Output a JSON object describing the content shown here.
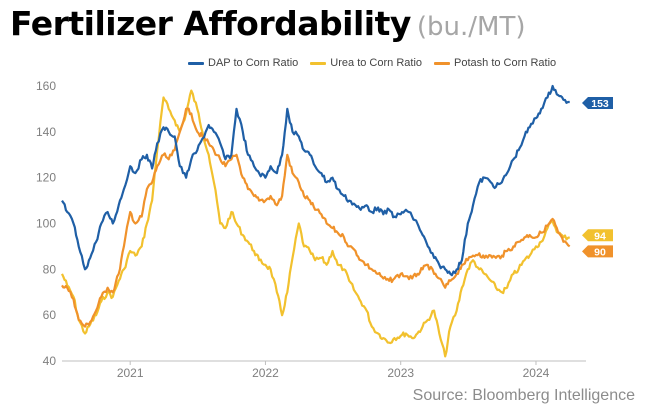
{
  "title": "Fertilizer Affordability",
  "title_unit": "(bu./MT)",
  "source": "Source: Bloomberg Intelligence",
  "chart_data": {
    "type": "line",
    "title": "Fertilizer Affordability",
    "subtitle": "(bu./MT)",
    "xlabel": "",
    "ylabel": "",
    "xlim": [
      "2020-07-01",
      "2024-05-15"
    ],
    "ylim": [
      40,
      160
    ],
    "yticks": [
      40,
      60,
      80,
      100,
      120,
      140,
      160
    ],
    "xticks": [
      {
        "label": "2021",
        "date": "2021-01-01"
      },
      {
        "label": "2022",
        "date": "2022-01-01"
      },
      {
        "label": "2023",
        "date": "2023-01-01"
      },
      {
        "label": "2024",
        "date": "2024-01-01"
      }
    ],
    "grid": false,
    "legend": "top-right",
    "series": [
      {
        "name": "DAP to Corn Ratio",
        "color": "#1f5fa6",
        "end_label": "153",
        "points": [
          [
            "2020-07-01",
            110
          ],
          [
            "2020-07-15",
            105
          ],
          [
            "2020-08-01",
            100
          ],
          [
            "2020-08-15",
            90
          ],
          [
            "2020-09-01",
            80
          ],
          [
            "2020-09-15",
            85
          ],
          [
            "2020-10-01",
            92
          ],
          [
            "2020-10-15",
            100
          ],
          [
            "2020-11-01",
            105
          ],
          [
            "2020-11-15",
            100
          ],
          [
            "2020-12-01",
            108
          ],
          [
            "2020-12-15",
            115
          ],
          [
            "2021-01-01",
            125
          ],
          [
            "2021-01-15",
            122
          ],
          [
            "2021-02-01",
            128
          ],
          [
            "2021-02-15",
            130
          ],
          [
            "2021-03-01",
            124
          ],
          [
            "2021-03-15",
            135
          ],
          [
            "2021-04-01",
            142
          ],
          [
            "2021-04-15",
            140
          ],
          [
            "2021-05-01",
            138
          ],
          [
            "2021-05-15",
            125
          ],
          [
            "2021-06-01",
            120
          ],
          [
            "2021-06-15",
            128
          ],
          [
            "2021-07-01",
            132
          ],
          [
            "2021-07-15",
            137
          ],
          [
            "2021-08-01",
            143
          ],
          [
            "2021-08-15",
            140
          ],
          [
            "2021-09-01",
            135
          ],
          [
            "2021-09-15",
            128
          ],
          [
            "2021-10-01",
            130
          ],
          [
            "2021-10-15",
            150
          ],
          [
            "2021-11-01",
            140
          ],
          [
            "2021-11-15",
            130
          ],
          [
            "2021-12-01",
            125
          ],
          [
            "2021-12-15",
            122
          ],
          [
            "2022-01-01",
            120
          ],
          [
            "2022-01-15",
            125
          ],
          [
            "2022-02-01",
            122
          ],
          [
            "2022-02-15",
            130
          ],
          [
            "2022-03-01",
            150
          ],
          [
            "2022-03-15",
            140
          ],
          [
            "2022-04-01",
            138
          ],
          [
            "2022-04-15",
            132
          ],
          [
            "2022-05-01",
            130
          ],
          [
            "2022-05-15",
            125
          ],
          [
            "2022-06-01",
            122
          ],
          [
            "2022-06-15",
            118
          ],
          [
            "2022-07-01",
            120
          ],
          [
            "2022-07-15",
            115
          ],
          [
            "2022-08-01",
            112
          ],
          [
            "2022-08-15",
            110
          ],
          [
            "2022-09-01",
            108
          ],
          [
            "2022-09-15",
            106
          ],
          [
            "2022-10-01",
            108
          ],
          [
            "2022-10-15",
            105
          ],
          [
            "2022-11-01",
            107
          ],
          [
            "2022-11-15",
            104
          ],
          [
            "2022-12-01",
            106
          ],
          [
            "2022-12-15",
            103
          ],
          [
            "2023-01-01",
            104
          ],
          [
            "2023-01-15",
            106
          ],
          [
            "2023-02-01",
            103
          ],
          [
            "2023-02-15",
            100
          ],
          [
            "2023-03-01",
            95
          ],
          [
            "2023-03-15",
            90
          ],
          [
            "2023-04-01",
            85
          ],
          [
            "2023-04-15",
            82
          ],
          [
            "2023-05-01",
            80
          ],
          [
            "2023-05-15",
            78
          ],
          [
            "2023-06-01",
            80
          ],
          [
            "2023-06-15",
            84
          ],
          [
            "2023-07-01",
            100
          ],
          [
            "2023-07-15",
            108
          ],
          [
            "2023-08-01",
            118
          ],
          [
            "2023-08-15",
            120
          ],
          [
            "2023-09-01",
            118
          ],
          [
            "2023-09-15",
            116
          ],
          [
            "2023-10-01",
            118
          ],
          [
            "2023-10-15",
            122
          ],
          [
            "2023-11-01",
            128
          ],
          [
            "2023-11-15",
            132
          ],
          [
            "2023-12-01",
            138
          ],
          [
            "2023-12-15",
            142
          ],
          [
            "2024-01-01",
            146
          ],
          [
            "2024-01-15",
            150
          ],
          [
            "2024-02-01",
            155
          ],
          [
            "2024-02-15",
            160
          ],
          [
            "2024-03-01",
            156
          ],
          [
            "2024-03-15",
            154
          ],
          [
            "2024-04-01",
            153
          ]
        ]
      },
      {
        "name": "Urea to Corn Ratio",
        "color": "#f2c12e",
        "end_label": "94",
        "points": [
          [
            "2020-07-01",
            78
          ],
          [
            "2020-07-15",
            73
          ],
          [
            "2020-08-01",
            68
          ],
          [
            "2020-08-15",
            58
          ],
          [
            "2020-09-01",
            52
          ],
          [
            "2020-09-15",
            56
          ],
          [
            "2020-10-01",
            60
          ],
          [
            "2020-10-15",
            66
          ],
          [
            "2020-11-01",
            70
          ],
          [
            "2020-11-15",
            68
          ],
          [
            "2020-12-01",
            75
          ],
          [
            "2020-12-15",
            80
          ],
          [
            "2021-01-01",
            88
          ],
          [
            "2021-01-15",
            86
          ],
          [
            "2021-02-01",
            90
          ],
          [
            "2021-02-15",
            100
          ],
          [
            "2021-03-01",
            110
          ],
          [
            "2021-03-15",
            132
          ],
          [
            "2021-04-01",
            155
          ],
          [
            "2021-04-15",
            150
          ],
          [
            "2021-05-01",
            145
          ],
          [
            "2021-05-15",
            140
          ],
          [
            "2021-06-01",
            148
          ],
          [
            "2021-06-15",
            158
          ],
          [
            "2021-07-01",
            150
          ],
          [
            "2021-07-15",
            140
          ],
          [
            "2021-08-01",
            130
          ],
          [
            "2021-08-15",
            118
          ],
          [
            "2021-09-01",
            100
          ],
          [
            "2021-09-15",
            98
          ],
          [
            "2021-10-01",
            105
          ],
          [
            "2021-10-15",
            100
          ],
          [
            "2021-11-01",
            95
          ],
          [
            "2021-11-15",
            92
          ],
          [
            "2021-12-01",
            88
          ],
          [
            "2021-12-15",
            84
          ],
          [
            "2022-01-01",
            82
          ],
          [
            "2022-01-15",
            80
          ],
          [
            "2022-02-01",
            70
          ],
          [
            "2022-02-15",
            60
          ],
          [
            "2022-03-01",
            70
          ],
          [
            "2022-03-15",
            85
          ],
          [
            "2022-04-01",
            100
          ],
          [
            "2022-04-15",
            90
          ],
          [
            "2022-05-01",
            88
          ],
          [
            "2022-05-15",
            84
          ],
          [
            "2022-06-01",
            85
          ],
          [
            "2022-06-15",
            82
          ],
          [
            "2022-07-01",
            88
          ],
          [
            "2022-07-15",
            82
          ],
          [
            "2022-08-01",
            80
          ],
          [
            "2022-08-15",
            75
          ],
          [
            "2022-09-01",
            70
          ],
          [
            "2022-09-15",
            66
          ],
          [
            "2022-10-01",
            62
          ],
          [
            "2022-10-15",
            55
          ],
          [
            "2022-11-01",
            52
          ],
          [
            "2022-11-15",
            50
          ],
          [
            "2022-12-01",
            48
          ],
          [
            "2022-12-15",
            50
          ],
          [
            "2023-01-01",
            51
          ],
          [
            "2023-01-15",
            52
          ],
          [
            "2023-02-01",
            50
          ],
          [
            "2023-02-15",
            52
          ],
          [
            "2023-03-01",
            55
          ],
          [
            "2023-03-15",
            58
          ],
          [
            "2023-04-01",
            62
          ],
          [
            "2023-04-15",
            52
          ],
          [
            "2023-05-01",
            42
          ],
          [
            "2023-05-15",
            55
          ],
          [
            "2023-06-01",
            62
          ],
          [
            "2023-06-15",
            72
          ],
          [
            "2023-07-01",
            80
          ],
          [
            "2023-07-15",
            84
          ],
          [
            "2023-08-01",
            80
          ],
          [
            "2023-08-15",
            78
          ],
          [
            "2023-09-01",
            75
          ],
          [
            "2023-09-15",
            72
          ],
          [
            "2023-10-01",
            70
          ],
          [
            "2023-10-15",
            72
          ],
          [
            "2023-11-01",
            78
          ],
          [
            "2023-11-15",
            80
          ],
          [
            "2023-12-01",
            84
          ],
          [
            "2023-12-15",
            86
          ],
          [
            "2024-01-01",
            90
          ],
          [
            "2024-01-15",
            92
          ],
          [
            "2024-02-01",
            98
          ],
          [
            "2024-02-15",
            101
          ],
          [
            "2024-03-01",
            96
          ],
          [
            "2024-03-15",
            94
          ],
          [
            "2024-04-01",
            94
          ]
        ]
      },
      {
        "name": "Potash to Corn Ratio",
        "color": "#f0922b",
        "end_label": "90",
        "points": [
          [
            "2020-07-01",
            73
          ],
          [
            "2020-07-15",
            72
          ],
          [
            "2020-08-01",
            67
          ],
          [
            "2020-08-15",
            58
          ],
          [
            "2020-09-01",
            55
          ],
          [
            "2020-09-15",
            57
          ],
          [
            "2020-10-01",
            62
          ],
          [
            "2020-10-15",
            68
          ],
          [
            "2020-11-01",
            72
          ],
          [
            "2020-11-15",
            70
          ],
          [
            "2020-12-01",
            78
          ],
          [
            "2020-12-15",
            90
          ],
          [
            "2021-01-01",
            105
          ],
          [
            "2021-01-15",
            100
          ],
          [
            "2021-02-01",
            103
          ],
          [
            "2021-02-15",
            115
          ],
          [
            "2021-03-01",
            118
          ],
          [
            "2021-03-15",
            125
          ],
          [
            "2021-04-01",
            130
          ],
          [
            "2021-04-15",
            128
          ],
          [
            "2021-05-01",
            132
          ],
          [
            "2021-05-15",
            140
          ],
          [
            "2021-06-01",
            150
          ],
          [
            "2021-06-15",
            148
          ],
          [
            "2021-07-01",
            140
          ],
          [
            "2021-07-15",
            138
          ],
          [
            "2021-08-01",
            135
          ],
          [
            "2021-08-15",
            132
          ],
          [
            "2021-09-01",
            128
          ],
          [
            "2021-09-15",
            125
          ],
          [
            "2021-10-01",
            128
          ],
          [
            "2021-10-15",
            130
          ],
          [
            "2021-11-01",
            120
          ],
          [
            "2021-11-15",
            115
          ],
          [
            "2021-12-01",
            112
          ],
          [
            "2021-12-15",
            110
          ],
          [
            "2022-01-01",
            110
          ],
          [
            "2022-01-15",
            112
          ],
          [
            "2022-02-01",
            108
          ],
          [
            "2022-02-15",
            112
          ],
          [
            "2022-03-01",
            130
          ],
          [
            "2022-03-15",
            122
          ],
          [
            "2022-04-01",
            118
          ],
          [
            "2022-04-15",
            112
          ],
          [
            "2022-05-01",
            110
          ],
          [
            "2022-05-15",
            106
          ],
          [
            "2022-06-01",
            104
          ],
          [
            "2022-06-15",
            100
          ],
          [
            "2022-07-01",
            98
          ],
          [
            "2022-07-15",
            96
          ],
          [
            "2022-08-01",
            94
          ],
          [
            "2022-08-15",
            90
          ],
          [
            "2022-09-01",
            88
          ],
          [
            "2022-09-15",
            84
          ],
          [
            "2022-10-01",
            82
          ],
          [
            "2022-10-15",
            80
          ],
          [
            "2022-11-01",
            78
          ],
          [
            "2022-11-15",
            76
          ],
          [
            "2022-12-01",
            75
          ],
          [
            "2022-12-15",
            76
          ],
          [
            "2023-01-01",
            78
          ],
          [
            "2023-01-15",
            77
          ],
          [
            "2023-02-01",
            76
          ],
          [
            "2023-02-15",
            78
          ],
          [
            "2023-03-01",
            80
          ],
          [
            "2023-03-15",
            82
          ],
          [
            "2023-04-01",
            78
          ],
          [
            "2023-04-15",
            76
          ],
          [
            "2023-05-01",
            72
          ],
          [
            "2023-05-15",
            75
          ],
          [
            "2023-06-01",
            78
          ],
          [
            "2023-06-15",
            82
          ],
          [
            "2023-07-01",
            84
          ],
          [
            "2023-07-15",
            86
          ],
          [
            "2023-08-01",
            87
          ],
          [
            "2023-08-15",
            85
          ],
          [
            "2023-09-01",
            86
          ],
          [
            "2023-09-15",
            85
          ],
          [
            "2023-10-01",
            86
          ],
          [
            "2023-10-15",
            88
          ],
          [
            "2023-11-01",
            90
          ],
          [
            "2023-11-15",
            92
          ],
          [
            "2023-12-01",
            94
          ],
          [
            "2023-12-15",
            95
          ],
          [
            "2024-01-01",
            94
          ],
          [
            "2024-01-15",
            96
          ],
          [
            "2024-02-01",
            99
          ],
          [
            "2024-02-15",
            102
          ],
          [
            "2024-03-01",
            96
          ],
          [
            "2024-03-15",
            92
          ],
          [
            "2024-04-01",
            90
          ]
        ]
      }
    ]
  }
}
